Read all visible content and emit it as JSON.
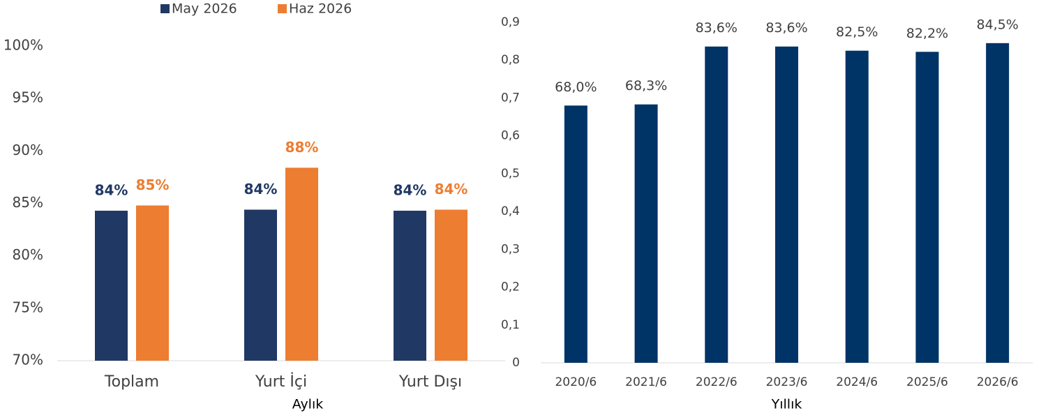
{
  "chart_data": [
    {
      "type": "grouped_bar",
      "x_label": "Aylık",
      "categories": [
        "Toplam",
        "Yurt İçi",
        "Yurt Dışı"
      ],
      "series": [
        {
          "name": "May 2026",
          "color": "#203864",
          "values": [
            84.3,
            84.4,
            84.3
          ],
          "value_labels": [
            "84%",
            "84%",
            "84%"
          ]
        },
        {
          "name": "Haz 2026",
          "color": "#ed7d31",
          "values": [
            84.8,
            88.4,
            84.4
          ],
          "value_labels": [
            "85%",
            "88%",
            "84%"
          ]
        }
      ],
      "ylim": [
        70,
        100
      ],
      "yticks": [
        {
          "value": 70,
          "label": "70%"
        },
        {
          "value": 75,
          "label": "75%"
        },
        {
          "value": 80,
          "label": "80%"
        },
        {
          "value": 85,
          "label": "85%"
        },
        {
          "value": 90,
          "label": "90%"
        },
        {
          "value": 95,
          "label": "95%"
        },
        {
          "value": 100,
          "label": "100%"
        }
      ],
      "legend": "top"
    },
    {
      "type": "bar",
      "x_label": "Yıllık",
      "categories": [
        "2020/6",
        "2021/6",
        "2022/6",
        "2023/6",
        "2024/6",
        "2025/6",
        "2026/6"
      ],
      "values": [
        0.68,
        0.683,
        0.836,
        0.836,
        0.825,
        0.822,
        0.845
      ],
      "value_labels": [
        "68,0%",
        "68,3%",
        "83,6%",
        "83,6%",
        "82,5%",
        "82,2%",
        "84,5%"
      ],
      "color": "#003366",
      "ylim": [
        0,
        0.9
      ],
      "yticks": [
        0,
        {
          "value": 0.1,
          "label": "0,1"
        },
        {
          "value": 0.2,
          "label": "0,2"
        },
        {
          "value": 0.3,
          "label": "0,3"
        },
        {
          "value": 0.4,
          "label": "0,4"
        },
        {
          "value": 0.5,
          "label": "0,5"
        },
        {
          "value": 0.6,
          "label": "0,6"
        },
        {
          "value": 0.7,
          "label": "0,7"
        },
        {
          "value": 0.8,
          "label": "0,8"
        },
        {
          "value": 0.9,
          "label": "0,9"
        }
      ]
    }
  ]
}
